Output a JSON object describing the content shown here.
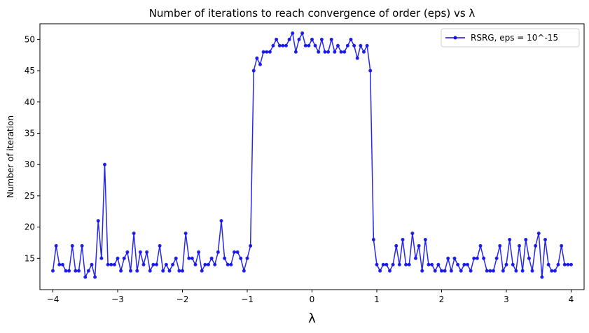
{
  "chart_data": {
    "type": "line",
    "title": "Number of iterations to reach convergence of order (eps) vs λ",
    "xlabel": "λ",
    "ylabel": "Number of iteration",
    "xlim": [
      -4.2,
      4.2
    ],
    "ylim": [
      10.0,
      52.5
    ],
    "xticks": [
      -4,
      -3,
      -2,
      -1,
      0,
      1,
      2,
      3,
      4
    ],
    "xtick_labels": [
      "−4",
      "−3",
      "−2",
      "−1",
      "0",
      "1",
      "2",
      "3",
      "4"
    ],
    "yticks": [
      15,
      20,
      25,
      30,
      35,
      40,
      45,
      50
    ],
    "ytick_labels": [
      "15",
      "20",
      "25",
      "30",
      "35",
      "40",
      "45",
      "50"
    ],
    "grid": false,
    "legend_position": "top-right",
    "series_color": "#1010e8",
    "x_start": -4.0,
    "x_step": 0.05,
    "series": [
      {
        "name": "RSRG, eps = 10^-15",
        "marker": "circle",
        "values": [
          13,
          17,
          14,
          14,
          13,
          13,
          17,
          13,
          13,
          17,
          12,
          13,
          14,
          12,
          21,
          15,
          30,
          14,
          14,
          14,
          15,
          13,
          15,
          16,
          13,
          19,
          13,
          16,
          14,
          16,
          13,
          14,
          14,
          17,
          13,
          14,
          13,
          14,
          15,
          13,
          13,
          19,
          15,
          15,
          14,
          16,
          13,
          14,
          14,
          15,
          14,
          16,
          21,
          15,
          14,
          14,
          16,
          16,
          15,
          13,
          15,
          17,
          45,
          47,
          46,
          48,
          48,
          48,
          49,
          50,
          49,
          49,
          49,
          50,
          51,
          48,
          50,
          51,
          49,
          49,
          50,
          49,
          48,
          50,
          48,
          48,
          50,
          48,
          49,
          48,
          48,
          49,
          50,
          49,
          47,
          49,
          48,
          49,
          45,
          18,
          14,
          13,
          14,
          14,
          13,
          14,
          17,
          14,
          18,
          14,
          14,
          19,
          15,
          17,
          13,
          18,
          14,
          14,
          13,
          14,
          13,
          13,
          15,
          13,
          15,
          14,
          13,
          14,
          14,
          13,
          15,
          15,
          17,
          15,
          13,
          13,
          13,
          15,
          17,
          13,
          14,
          18,
          14,
          13,
          17,
          13,
          18,
          15,
          13,
          17,
          19,
          12,
          18,
          14,
          13,
          13,
          14,
          17,
          14,
          14,
          14
        ]
      }
    ]
  }
}
